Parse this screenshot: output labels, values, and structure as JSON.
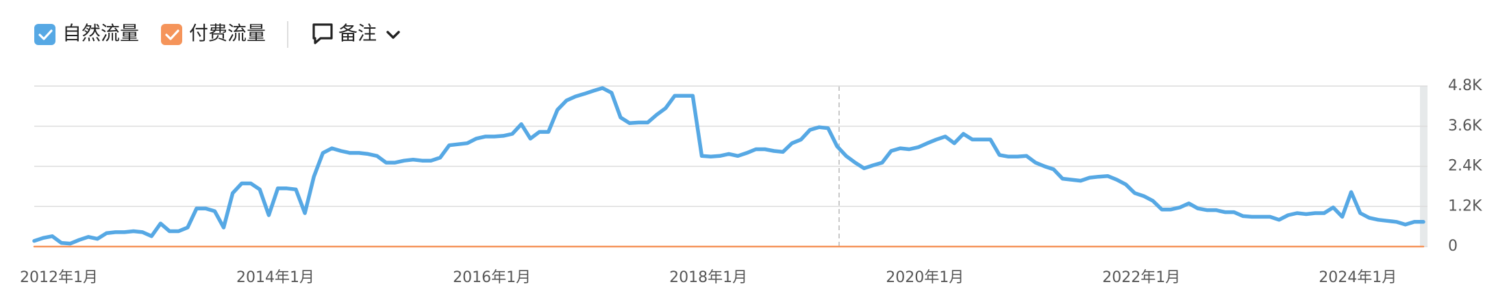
{
  "toolbar": {
    "notes_label": "备注"
  },
  "chart_data": {
    "type": "line",
    "categories": [
      "2012年1月",
      null,
      null,
      null,
      null,
      null,
      null,
      null,
      null,
      null,
      null,
      null,
      null,
      null,
      null,
      null,
      null,
      null,
      null,
      null,
      null,
      null,
      null,
      null,
      "2014年1月",
      null,
      null,
      null,
      null,
      null,
      null,
      null,
      null,
      null,
      null,
      null,
      null,
      null,
      null,
      null,
      null,
      null,
      null,
      null,
      null,
      null,
      null,
      null,
      "2016年1月",
      null,
      null,
      null,
      null,
      null,
      null,
      null,
      null,
      null,
      null,
      null,
      null,
      null,
      null,
      null,
      null,
      null,
      null,
      null,
      null,
      null,
      null,
      null,
      "2018年1月",
      null,
      null,
      null,
      null,
      null,
      null,
      null,
      null,
      null,
      null,
      null,
      null,
      null,
      null,
      null,
      null,
      null,
      null,
      null,
      null,
      null,
      null,
      null,
      "2020年1月",
      null,
      null,
      null,
      null,
      null,
      null,
      null,
      null,
      null,
      null,
      null,
      null,
      null,
      null,
      null,
      null,
      null,
      null,
      null,
      null,
      null,
      null,
      null,
      "2022年1月",
      null,
      null,
      null,
      null,
      null,
      null,
      null,
      null,
      null,
      null,
      null,
      null,
      null,
      null,
      null,
      null,
      null,
      null,
      null,
      null,
      null,
      null,
      null,
      "2024年1月",
      null,
      null,
      null,
      null,
      null,
      null,
      null,
      null,
      null,
      null
    ],
    "series": [
      {
        "name": "自然流量",
        "color": "#56a8e4",
        "values": [
          170,
          260,
          310,
          110,
          90,
          200,
          290,
          230,
          400,
          430,
          430,
          460,
          430,
          310,
          690,
          460,
          460,
          570,
          1140,
          1140,
          1060,
          570,
          1600,
          1890,
          1890,
          1710,
          940,
          1740,
          1740,
          1710,
          1000,
          2090,
          2800,
          2940,
          2860,
          2800,
          2800,
          2770,
          2710,
          2510,
          2510,
          2570,
          2600,
          2570,
          2570,
          2660,
          3030,
          3060,
          3090,
          3230,
          3290,
          3290,
          3310,
          3370,
          3660,
          3230,
          3430,
          3430,
          4090,
          4370,
          4490,
          4570,
          4660,
          4740,
          4600,
          3860,
          3690,
          3710,
          3710,
          3940,
          4140,
          4510,
          4510,
          4510,
          2710,
          2690,
          2710,
          2770,
          2710,
          2800,
          2910,
          2910,
          2860,
          2830,
          3090,
          3200,
          3490,
          3570,
          3540,
          3000,
          2710,
          2510,
          2340,
          2430,
          2510,
          2860,
          2940,
          2910,
          2970,
          3090,
          3200,
          3290,
          3090,
          3370,
          3200,
          3200,
          3200,
          2740,
          2690,
          2690,
          2710,
          2510,
          2400,
          2310,
          2030,
          2000,
          1970,
          2060,
          2090,
          2110,
          2000,
          1860,
          1600,
          1510,
          1370,
          1110,
          1110,
          1170,
          1290,
          1140,
          1090,
          1090,
          1030,
          1030,
          910,
          890,
          890,
          890,
          800,
          940,
          1000,
          970,
          1000,
          1000,
          1170,
          890,
          1630,
          1000,
          860,
          800,
          770,
          740,
          660,
          740,
          740
        ]
      },
      {
        "name": "付费流量",
        "color": "#f5945a",
        "values": [
          0,
          0,
          0,
          0,
          0,
          0,
          0,
          0,
          0,
          0,
          0,
          0,
          0,
          0,
          0,
          0,
          0,
          0,
          0,
          0,
          0,
          0,
          0,
          0,
          0,
          0,
          0,
          0,
          0,
          0,
          0,
          0,
          0,
          0,
          0,
          0,
          0,
          0,
          0,
          0,
          0,
          0,
          0,
          0,
          0,
          0,
          0,
          0,
          0,
          0,
          0,
          0,
          0,
          0,
          0,
          0,
          0,
          0,
          0,
          0,
          0,
          0,
          0,
          0,
          0,
          0,
          0,
          0,
          0,
          0,
          0,
          0,
          0,
          0,
          0,
          0,
          0,
          0,
          0,
          0,
          0,
          0,
          0,
          0,
          0,
          0,
          0,
          0,
          0,
          0,
          0,
          0,
          0,
          0,
          0,
          0,
          0,
          0,
          0,
          0,
          0,
          0,
          0,
          0,
          0,
          0,
          0,
          0,
          0,
          0,
          0,
          0,
          0,
          0,
          0,
          0,
          0,
          0,
          0,
          0,
          0,
          0,
          0,
          0,
          0,
          0,
          0,
          0,
          0,
          0,
          0,
          0,
          0,
          0,
          0,
          0,
          0,
          0,
          0,
          0,
          0,
          0,
          0,
          0,
          0,
          0,
          0,
          0,
          0,
          0,
          0,
          0,
          0,
          0,
          0
        ]
      }
    ],
    "ylim": [
      0,
      4800
    ],
    "yticks": [
      0,
      {
        "value": 1200,
        "label": "1.2K"
      },
      {
        "value": 2400,
        "label": "2.4K"
      },
      {
        "value": 3600,
        "label": "3.6K"
      },
      {
        "value": 4800,
        "label": "4.8K"
      }
    ],
    "grid": true
  }
}
